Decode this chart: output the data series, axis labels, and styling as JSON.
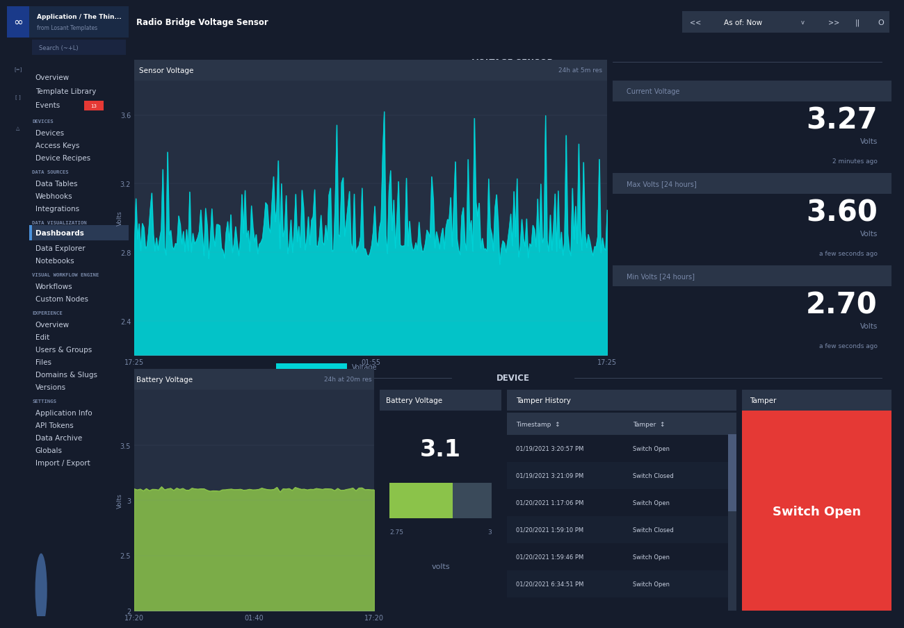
{
  "bg_dark": "#151c2c",
  "bg_sidebar": "#1a2235",
  "bg_panel": "#252f42",
  "bg_panel_header": "#2a3548",
  "bg_panel_light": "#2e3d55",
  "bg_main": "#1e2a3a",
  "accent_cyan": "#00d4d8",
  "accent_blue": "#4a90d9",
  "accent_green": "#8bc34a",
  "accent_red": "#e53935",
  "text_white": "#ffffff",
  "text_light": "#c8d0e0",
  "text_dim": "#7a8aaa",
  "section_label_voltage": "VOLTAGE SENSOR",
  "section_label_device": "DEVICE",
  "header_title": "Radio Bridge Voltage Sensor",
  "voltage_chart_title": "Sensor Voltage",
  "voltage_chart_subtitle": "24h at 5m res",
  "voltage_ylim": [
    2.2,
    3.8
  ],
  "voltage_yticks": [
    2.4,
    2.8,
    3.2,
    3.6
  ],
  "voltage_xticks": [
    "17:25",
    "01:55",
    "17:25"
  ],
  "voltage_ylabel": "Volts",
  "current_voltage_label": "Current Voltage",
  "current_voltage_value": "3.27",
  "current_voltage_unit": "Volts",
  "current_voltage_time": "2 minutes ago",
  "max_voltage_label": "Max Volts [24 hours]",
  "max_voltage_value": "3.60",
  "max_voltage_unit": "Volts",
  "max_voltage_time": "a few seconds ago",
  "min_voltage_label": "Min Volts [24 hours]",
  "min_voltage_value": "2.70",
  "min_voltage_unit": "Volts",
  "min_voltage_time": "a few seconds ago",
  "battery_chart_title": "Battery Voltage",
  "battery_chart_subtitle": "24h at 20m res",
  "battery_ylim": [
    2.0,
    4.0
  ],
  "battery_xticks": [
    "17:20",
    "01:40",
    "17:20"
  ],
  "battery_ylabel": "Volts",
  "battery_gauge_title": "Battery Voltage",
  "battery_gauge_value": "3.1",
  "battery_gauge_unit": "volts",
  "battery_gauge_min": "2.75",
  "battery_gauge_max": "3",
  "tamper_title": "Tamper History",
  "tamper_col1": "Timestamp",
  "tamper_col2": "Tamper",
  "tamper_rows": [
    [
      "01/19/2021 3:20:57 PM",
      "Switch Open"
    ],
    [
      "01/19/2021 3:21:09 PM",
      "Switch Closed"
    ],
    [
      "01/20/2021 1:17:06 PM",
      "Switch Open"
    ],
    [
      "01/20/2021 1:59:10 PM",
      "Switch Closed"
    ],
    [
      "01/20/2021 1:59:46 PM",
      "Switch Open"
    ],
    [
      "01/20/2021 6:34:51 PM",
      "Switch Open"
    ]
  ],
  "tamper_widget_title": "Tamper",
  "tamper_widget_value": "Switch Open",
  "tamper_widget_bg": "#e53935",
  "sidebar_items_overview": [
    "Overview",
    "Template Library",
    "Events"
  ],
  "devices_items": [
    "Devices",
    "Access Keys",
    "Device Recipes"
  ],
  "datasources_items": [
    "Data Tables",
    "Webhooks",
    "Integrations"
  ],
  "datavis_items": [
    "Dashboards",
    "Data Explorer",
    "Notebooks"
  ],
  "workflow_items": [
    "Workflows",
    "Custom Nodes"
  ],
  "experience_items": [
    "Overview",
    "Edit",
    "Users & Groups",
    "Files",
    "Domains & Slugs",
    "Versions"
  ],
  "settings_items": [
    "Application Info",
    "API Tokens",
    "Data Archive",
    "Globals",
    "Import / Export"
  ]
}
